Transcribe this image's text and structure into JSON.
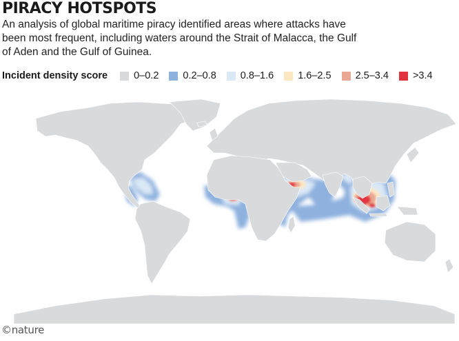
{
  "header": {
    "title": "PIRACY HOTSPOTS",
    "subtitle": "An analysis of global maritime piracy identified areas where attacks have been most frequent, including waters around the Strait of Malacca, the Gulf of Aden and the Gulf of Guinea."
  },
  "legend": {
    "title": "Incident density score",
    "items": [
      {
        "label": "0–0.2",
        "color": "#d9dadc"
      },
      {
        "label": "0.2–0.8",
        "color": "#8eb1de"
      },
      {
        "label": "0.8–1.6",
        "color": "#dbe9f7"
      },
      {
        "label": "1.6–2.5",
        "color": "#fbe7c2"
      },
      {
        "label": "2.5–3.4",
        "color": "#eaa793"
      },
      {
        "label": ">3.4",
        "color": "#e2343f"
      }
    ]
  },
  "map": {
    "land_color": "#d9dadc",
    "land_stroke": "#ffffff"
  },
  "footer": {
    "credit": "©nature"
  }
}
